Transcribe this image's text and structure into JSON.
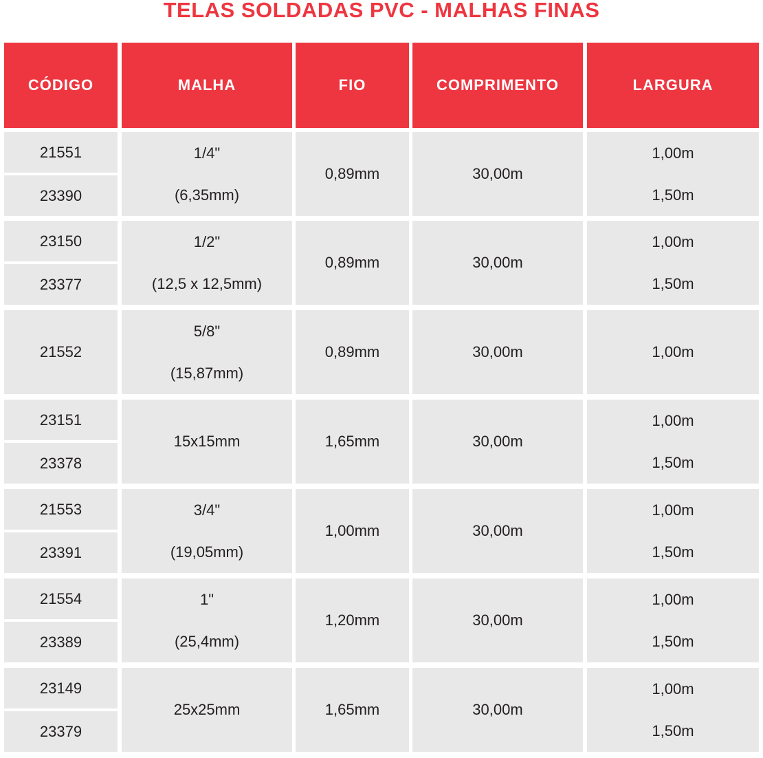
{
  "title": "TELAS SOLDADAS PVC - MALHAS FINAS",
  "colors": {
    "accent": "#ee3640",
    "row_bg": "#e8e8e8",
    "text": "#231f20",
    "header_text": "#ffffff"
  },
  "headers": [
    "CÓDIGO",
    "MALHA",
    "FIO",
    "COMPRIMENTO",
    "LARGURA"
  ],
  "groups": [
    {
      "codes": [
        "21551",
        "23390"
      ],
      "malha": [
        "1/4\"",
        "(6,35mm)"
      ],
      "fio": "0,89mm",
      "comprimento": "30,00m",
      "largura": [
        "1,00m",
        "1,50m"
      ]
    },
    {
      "codes": [
        "23150",
        "23377"
      ],
      "malha": [
        "1/2\"",
        "(12,5 x 12,5mm)"
      ],
      "fio": "0,89mm",
      "comprimento": "30,00m",
      "largura": [
        "1,00m",
        "1,50m"
      ]
    },
    {
      "codes": [
        "21552"
      ],
      "malha": [
        "5/8\"",
        "(15,87mm)"
      ],
      "fio": "0,89mm",
      "comprimento": "30,00m",
      "largura": [
        "1,00m"
      ]
    },
    {
      "codes": [
        "23151",
        "23378"
      ],
      "malha": [
        "15x15mm"
      ],
      "fio": "1,65mm",
      "comprimento": "30,00m",
      "largura": [
        "1,00m",
        "1,50m"
      ]
    },
    {
      "codes": [
        "21553",
        "23391"
      ],
      "malha": [
        "3/4\"",
        "(19,05mm)"
      ],
      "fio": "1,00mm",
      "comprimento": "30,00m",
      "largura": [
        "1,00m",
        "1,50m"
      ]
    },
    {
      "codes": [
        "21554",
        "23389"
      ],
      "malha": [
        "1\"",
        "(25,4mm)"
      ],
      "fio": "1,20mm",
      "comprimento": "30,00m",
      "largura": [
        "1,00m",
        "1,50m"
      ]
    },
    {
      "codes": [
        "23149",
        "23379"
      ],
      "malha": [
        "25x25mm"
      ],
      "fio": "1,65mm",
      "comprimento": "30,00m",
      "largura": [
        "1,00m",
        "1,50m"
      ]
    }
  ]
}
